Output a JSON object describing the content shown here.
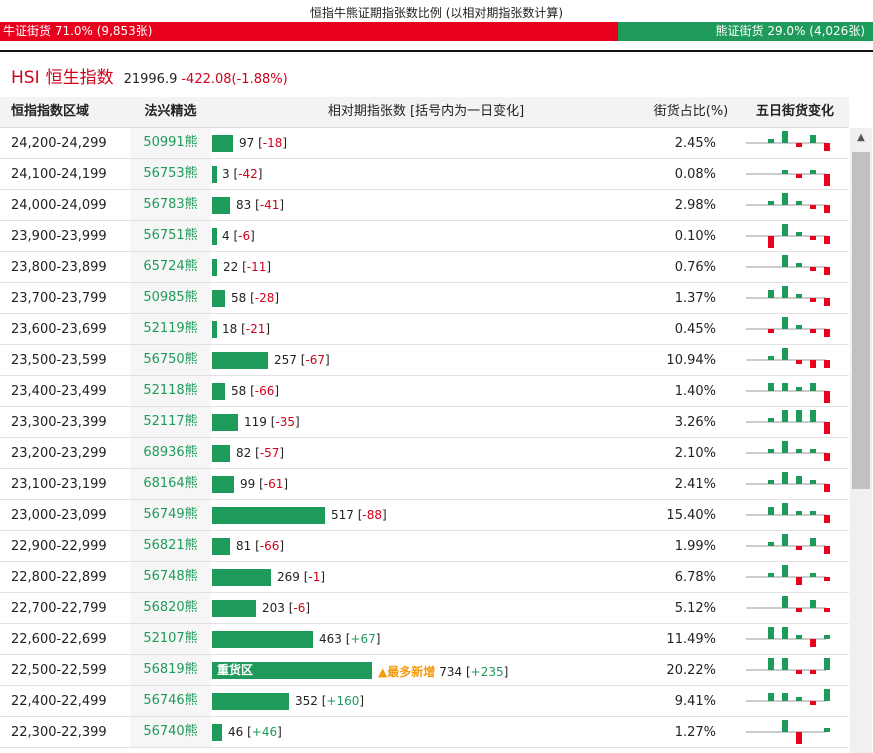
{
  "title": "恒指牛熊证期指张数比例 (以相对期指张数计算)",
  "ratio": {
    "bull_label": "牛证街货 71.0% (9,853张)",
    "bear_label": "熊证街货 29.0% (4,026张)",
    "bull_share": 0.71
  },
  "index": {
    "code": "HSI",
    "name": "恒生指数",
    "value": "21996.9",
    "change": "-422.08(-1.88%)"
  },
  "headers": {
    "range": "恒指指数区域",
    "warrant": "法兴精选",
    "count": "相对期指张数 [括号内为一日变化]",
    "pct": "街货占比(%)",
    "five_day": "五日街货变化"
  },
  "colors": {
    "bull": "#e8001c",
    "bear": "#1e9b5b",
    "accent": "#f39c12"
  },
  "rows": [
    {
      "range": "24,200-24,299",
      "warrant": "50991熊",
      "count": 97,
      "change": "-18",
      "pct": "2.45%",
      "spark": [
        1,
        3,
        -1,
        2,
        -2
      ]
    },
    {
      "range": "24,100-24,199",
      "warrant": "56753熊",
      "count": 3,
      "change": "-42",
      "pct": "0.08%",
      "spark": [
        0,
        1,
        -1,
        1,
        -3
      ]
    },
    {
      "range": "24,000-24,099",
      "warrant": "56783熊",
      "count": 83,
      "change": "-41",
      "pct": "2.98%",
      "spark": [
        1,
        3,
        1,
        -1,
        -2
      ]
    },
    {
      "range": "23,900-23,999",
      "warrant": "56751熊",
      "count": 4,
      "change": "-6",
      "pct": "0.10%",
      "spark": [
        -3,
        3,
        1,
        -1,
        -2
      ]
    },
    {
      "range": "23,800-23,899",
      "warrant": "65724熊",
      "count": 22,
      "change": "-11",
      "pct": "0.76%",
      "spark": [
        0,
        3,
        1,
        -1,
        -2
      ]
    },
    {
      "range": "23,700-23,799",
      "warrant": "50985熊",
      "count": 58,
      "change": "-28",
      "pct": "1.37%",
      "spark": [
        2,
        3,
        1,
        -1,
        -2
      ]
    },
    {
      "range": "23,600-23,699",
      "warrant": "52119熊",
      "count": 18,
      "change": "-21",
      "pct": "0.45%",
      "spark": [
        -1,
        3,
        1,
        -1,
        -2
      ]
    },
    {
      "range": "23,500-23,599",
      "warrant": "56750熊",
      "count": 257,
      "change": "-67",
      "pct": "10.94%",
      "spark": [
        1,
        3,
        -1,
        -2,
        -2
      ]
    },
    {
      "range": "23,400-23,499",
      "warrant": "52118熊",
      "count": 58,
      "change": "-66",
      "pct": "1.40%",
      "spark": [
        2,
        2,
        1,
        2,
        -3
      ]
    },
    {
      "range": "23,300-23,399",
      "warrant": "52117熊",
      "count": 119,
      "change": "-35",
      "pct": "3.26%",
      "spark": [
        1,
        3,
        3,
        3,
        -3
      ]
    },
    {
      "range": "23,200-23,299",
      "warrant": "68936熊",
      "count": 82,
      "change": "-57",
      "pct": "2.10%",
      "spark": [
        1,
        3,
        1,
        1,
        -2
      ]
    },
    {
      "range": "23,100-23,199",
      "warrant": "68164熊",
      "count": 99,
      "change": "-61",
      "pct": "2.41%",
      "spark": [
        1,
        3,
        2,
        1,
        -2
      ]
    },
    {
      "range": "23,000-23,099",
      "warrant": "56749熊",
      "count": 517,
      "change": "-88",
      "pct": "15.40%",
      "spark": [
        2,
        3,
        1,
        1,
        -2
      ]
    },
    {
      "range": "22,900-22,999",
      "warrant": "56821熊",
      "count": 81,
      "change": "-66",
      "pct": "1.99%",
      "spark": [
        1,
        3,
        -1,
        2,
        -2
      ]
    },
    {
      "range": "22,800-22,899",
      "warrant": "56748熊",
      "count": 269,
      "change": "-1",
      "pct": "6.78%",
      "spark": [
        1,
        3,
        -2,
        1,
        -1
      ]
    },
    {
      "range": "22,700-22,799",
      "warrant": "56820熊",
      "count": 203,
      "change": "-6",
      "pct": "5.12%",
      "spark": [
        0,
        3,
        -1,
        2,
        -1
      ]
    },
    {
      "range": "22,600-22,699",
      "warrant": "52107熊",
      "count": 463,
      "change": "+67",
      "pct": "11.49%",
      "spark": [
        3,
        3,
        1,
        -2,
        1
      ]
    },
    {
      "range": "22,500-22,599",
      "warrant": "56819熊",
      "count": 734,
      "change": "+235",
      "pct": "20.22%",
      "bar_label": "重货区",
      "tag": "▲最多新增",
      "spark": [
        3,
        3,
        -1,
        -1,
        3
      ]
    },
    {
      "range": "22,400-22,499",
      "warrant": "56746熊",
      "count": 352,
      "change": "+160",
      "pct": "9.41%",
      "spark": [
        2,
        2,
        1,
        -1,
        3
      ]
    },
    {
      "range": "22,300-22,399",
      "warrant": "56740熊",
      "count": 46,
      "change": "+46",
      "pct": "1.27%",
      "spark": [
        0,
        3,
        -3,
        0,
        1
      ]
    }
  ]
}
